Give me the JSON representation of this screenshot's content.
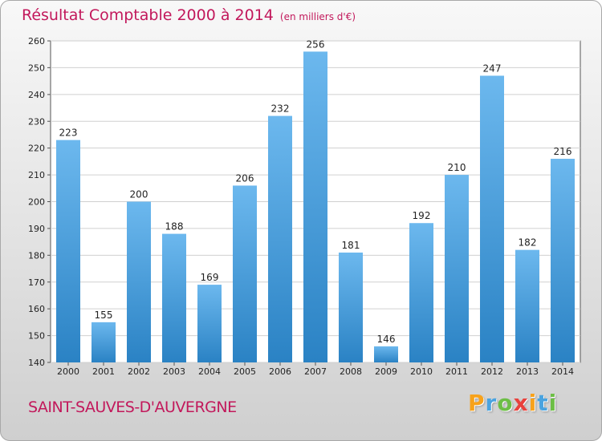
{
  "header": {
    "title": "Résultat Comptable 2000 à 2014",
    "unit": "(en milliers d'€)"
  },
  "commune": "SAINT-SAUVES-D'AUVERGNE",
  "logo": {
    "letters": [
      "P",
      "r",
      "o",
      "x",
      "i",
      "t",
      "i"
    ],
    "colors": [
      "#f7a21b",
      "#4aa3df",
      "#6cbe45",
      "#e8413c",
      "#f7a21b",
      "#4aa3df",
      "#6cbe45"
    ]
  },
  "colors": {
    "bar_light": "#6cb8ee",
    "bar_dark": "#2a82c4",
    "title": "#c2185b"
  },
  "chart_data": {
    "type": "bar",
    "title": "Résultat Comptable 2000 à 2014",
    "subtitle": "(en milliers d'€)",
    "xlabel": "",
    "ylabel": "",
    "categories": [
      "2000",
      "2001",
      "2002",
      "2003",
      "2004",
      "2005",
      "2006",
      "2007",
      "2008",
      "2009",
      "2010",
      "2011",
      "2012",
      "2013",
      "2014"
    ],
    "values": [
      223,
      155,
      200,
      188,
      169,
      206,
      232,
      256,
      181,
      146,
      192,
      210,
      247,
      182,
      216
    ],
    "ylim": [
      140,
      260
    ],
    "yticks": [
      140,
      150,
      160,
      170,
      180,
      190,
      200,
      210,
      220,
      230,
      240,
      250,
      260
    ],
    "grid": true
  }
}
